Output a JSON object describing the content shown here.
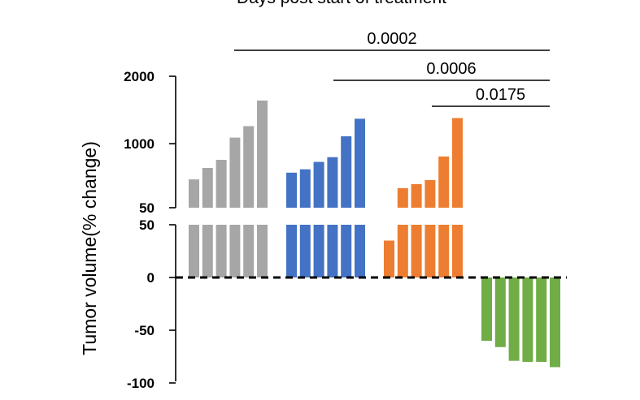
{
  "chart_data": {
    "type": "bar",
    "title": "Days post start of treatment",
    "ylabel": "Tumor volume(% change)",
    "y_axis": {
      "broken": true,
      "upper_segment": {
        "range": [
          50,
          2000
        ],
        "ticks": [
          {
            "value": 2000,
            "label": "2000"
          },
          {
            "value": 1000,
            "label": "1000"
          },
          {
            "value": 50,
            "label": "50"
          }
        ]
      },
      "lower_segment": {
        "range": [
          -100,
          50
        ],
        "ticks": [
          {
            "value": 50,
            "label": "50"
          },
          {
            "value": 0,
            "label": "0"
          },
          {
            "value": -50,
            "label": "-50"
          },
          {
            "value": -100,
            "label": "-100"
          }
        ]
      }
    },
    "zero_line": "dashed",
    "groups": [
      {
        "color": "#a6a6a6",
        "values": [
          470,
          640,
          760,
          1090,
          1260,
          1640
        ]
      },
      {
        "color": "#4472c4",
        "values": [
          570,
          620,
          730,
          800,
          1110,
          1370
        ]
      },
      {
        "color": "#ed7d31",
        "values": [
          35,
          340,
          400,
          460,
          810,
          1380
        ]
      },
      {
        "color": "#70ad47",
        "values": [
          -60,
          -66,
          -79,
          -80,
          -80,
          -85
        ]
      }
    ],
    "comparisons": [
      {
        "label": "0.0002",
        "from_group": 0,
        "to_group": 3
      },
      {
        "label": "0.0006",
        "from_group": 1,
        "to_group": 3
      },
      {
        "label": "0.0175",
        "from_group": 2,
        "to_group": 3
      }
    ]
  }
}
